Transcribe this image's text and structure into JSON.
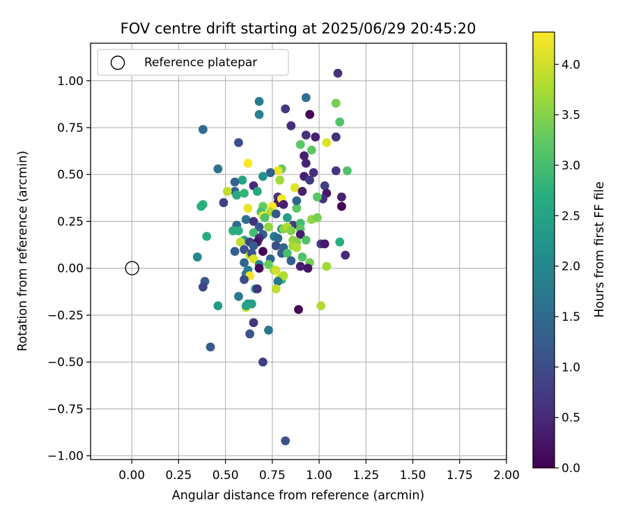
{
  "chart_data": {
    "type": "scatter",
    "title": "FOV centre drift starting at 2025/06/29 20:45:20",
    "xlabel": "Angular distance from reference (arcmin)",
    "ylabel": "Rotation from reference (arcmin)",
    "xlim": [
      -0.22,
      2.0
    ],
    "ylim": [
      -1.02,
      1.2
    ],
    "grid": true,
    "x_ticks": [
      0.0,
      0.25,
      0.5,
      0.75,
      1.0,
      1.25,
      1.5,
      1.75,
      2.0
    ],
    "x_tick_labels": [
      "0.00",
      "0.25",
      "0.50",
      "0.75",
      "1.00",
      "1.25",
      "1.50",
      "1.75",
      "2.00"
    ],
    "y_ticks": [
      -1.0,
      -0.75,
      -0.5,
      -0.25,
      0.0,
      0.25,
      0.5,
      0.75,
      1.0
    ],
    "y_tick_labels": [
      "−1.00",
      "−0.75",
      "−0.50",
      "−0.25",
      "0.00",
      "0.25",
      "0.50",
      "0.75",
      "1.00"
    ],
    "legend": {
      "placement": "upper-left",
      "entries": [
        "Reference platepar"
      ]
    },
    "reference_point": {
      "name": "Reference platepar",
      "x": 0.0,
      "y": 0.0,
      "marker": "open-circle"
    },
    "colorbar": {
      "label": "Hours from first FF file",
      "range": [
        0.0,
        4.32
      ],
      "colormap": "viridis",
      "ticks": [
        0.0,
        0.5,
        1.0,
        1.5,
        2.0,
        2.5,
        3.0,
        3.5,
        4.0
      ],
      "tick_labels": [
        "0.0",
        "0.5",
        "1.0",
        "1.5",
        "2.0",
        "2.5",
        "3.0",
        "3.5",
        "4.0"
      ]
    },
    "points": [
      [
        1.1,
        1.04,
        0.6
      ],
      [
        1.09,
        0.88,
        3.4
      ],
      [
        0.68,
        0.89,
        1.8
      ],
      [
        0.93,
        0.91,
        1.6
      ],
      [
        0.82,
        0.85,
        0.7
      ],
      [
        0.95,
        0.82,
        0.05
      ],
      [
        0.68,
        0.82,
        1.9
      ],
      [
        1.11,
        0.78,
        3.1
      ],
      [
        0.85,
        0.76,
        0.55
      ],
      [
        0.38,
        0.74,
        1.5
      ],
      [
        0.93,
        0.71,
        0.6
      ],
      [
        1.09,
        0.7,
        0.6
      ],
      [
        0.98,
        0.7,
        0.4
      ],
      [
        0.57,
        0.67,
        1.0
      ],
      [
        0.9,
        0.66,
        3.2
      ],
      [
        1.04,
        0.67,
        4.1
      ],
      [
        0.96,
        0.63,
        3.2
      ],
      [
        0.92,
        0.6,
        0.35
      ],
      [
        0.93,
        0.56,
        0.4
      ],
      [
        0.62,
        0.56,
        4.3
      ],
      [
        0.46,
        0.53,
        1.6
      ],
      [
        0.8,
        0.53,
        3.3
      ],
      [
        1.09,
        0.52,
        0.7
      ],
      [
        1.15,
        0.52,
        3.1
      ],
      [
        0.97,
        0.51,
        0.55
      ],
      [
        0.78,
        0.52,
        4.2
      ],
      [
        0.74,
        0.51,
        1.3
      ],
      [
        0.7,
        0.49,
        2.2
      ],
      [
        0.92,
        0.49,
        0.4
      ],
      [
        0.95,
        0.47,
        0.75
      ],
      [
        0.79,
        0.47,
        3.7
      ],
      [
        0.59,
        0.47,
        2.5
      ],
      [
        0.55,
        0.46,
        1.4
      ],
      [
        1.03,
        0.44,
        0.8
      ],
      [
        0.65,
        0.44,
        0.5
      ],
      [
        0.67,
        0.41,
        2.6
      ],
      [
        0.55,
        0.41,
        1.3
      ],
      [
        0.51,
        0.41,
        3.9
      ],
      [
        0.56,
        0.39,
        2.6
      ],
      [
        0.6,
        0.4,
        2.8
      ],
      [
        1.04,
        0.4,
        0.3
      ],
      [
        0.87,
        0.43,
        4.1
      ],
      [
        0.91,
        0.41,
        0.4
      ],
      [
        0.78,
        0.38,
        0.6
      ],
      [
        0.78,
        0.35,
        0.35
      ],
      [
        0.8,
        0.37,
        4.25
      ],
      [
        1.02,
        0.37,
        0.6
      ],
      [
        1.12,
        0.38,
        0.4
      ],
      [
        0.99,
        0.38,
        3.2
      ],
      [
        0.49,
        0.35,
        0.8
      ],
      [
        0.38,
        0.34,
        2.8
      ],
      [
        0.37,
        0.33,
        2.7
      ],
      [
        0.7,
        0.33,
        3.3
      ],
      [
        0.62,
        0.32,
        4.2
      ],
      [
        0.88,
        0.32,
        3.2
      ],
      [
        1.12,
        0.33,
        0.05
      ],
      [
        0.81,
        0.34,
        0.35
      ],
      [
        0.69,
        0.3,
        3.0
      ],
      [
        0.75,
        0.33,
        4.3
      ],
      [
        0.88,
        0.36,
        1.4
      ],
      [
        0.74,
        0.3,
        3.8
      ],
      [
        0.77,
        0.29,
        1.2
      ],
      [
        0.7,
        0.28,
        4.2
      ],
      [
        0.71,
        0.27,
        3.1
      ],
      [
        0.96,
        0.26,
        3.6
      ],
      [
        0.99,
        0.27,
        3.4
      ],
      [
        0.61,
        0.26,
        1.6
      ],
      [
        0.65,
        0.25,
        0.6
      ],
      [
        0.83,
        0.27,
        2.4
      ],
      [
        0.86,
        0.23,
        0.75
      ],
      [
        0.9,
        0.24,
        3.0
      ],
      [
        0.56,
        0.23,
        1.5
      ],
      [
        0.73,
        0.22,
        3.6
      ],
      [
        0.68,
        0.22,
        1.2
      ],
      [
        0.57,
        0.2,
        2.7
      ],
      [
        0.54,
        0.2,
        2.7
      ],
      [
        0.8,
        0.21,
        2.3
      ],
      [
        0.81,
        0.21,
        3.5
      ],
      [
        0.83,
        0.22,
        3.8
      ],
      [
        0.85,
        0.2,
        3.5
      ],
      [
        0.9,
        0.21,
        3.2
      ],
      [
        0.9,
        0.18,
        0.35
      ],
      [
        0.65,
        0.19,
        3.0
      ],
      [
        0.7,
        0.18,
        1.3
      ],
      [
        0.4,
        0.17,
        2.6
      ],
      [
        0.76,
        0.17,
        1.8
      ],
      [
        0.78,
        0.16,
        1.5
      ],
      [
        0.68,
        0.16,
        0.55
      ],
      [
        0.6,
        0.15,
        2.4
      ],
      [
        0.63,
        0.14,
        0.85
      ],
      [
        0.67,
        0.14,
        0.25
      ],
      [
        0.58,
        0.14,
        3.9
      ],
      [
        0.86,
        0.15,
        3.6
      ],
      [
        0.88,
        0.14,
        3.5
      ],
      [
        0.93,
        0.15,
        3.1
      ],
      [
        1.01,
        0.13,
        0.7
      ],
      [
        1.03,
        0.13,
        0.3
      ],
      [
        1.11,
        0.14,
        2.7
      ],
      [
        0.65,
        0.12,
        1.2
      ],
      [
        0.77,
        0.12,
        1.0
      ],
      [
        0.81,
        0.11,
        1.4
      ],
      [
        0.86,
        0.12,
        3.7
      ],
      [
        0.88,
        0.11,
        3.8
      ],
      [
        0.6,
        0.1,
        1.1
      ],
      [
        0.55,
        0.09,
        1.3
      ],
      [
        0.7,
        0.09,
        0.05
      ],
      [
        0.63,
        0.07,
        3.9
      ],
      [
        0.64,
        0.08,
        1.1
      ],
      [
        0.8,
        0.08,
        1.3
      ],
      [
        0.83,
        0.08,
        3.0
      ],
      [
        0.91,
        0.06,
        3.1
      ],
      [
        1.14,
        0.07,
        0.5
      ],
      [
        0.35,
        0.06,
        2.0
      ],
      [
        0.65,
        0.05,
        4.1
      ],
      [
        0.74,
        0.05,
        1.4
      ],
      [
        0.85,
        0.04,
        1.3
      ],
      [
        0.6,
        0.03,
        1.4
      ],
      [
        0.68,
        0.02,
        2.0
      ],
      [
        0.73,
        0.02,
        3.3
      ],
      [
        0.95,
        0.03,
        3.4
      ],
      [
        0.9,
        0.01,
        0.35
      ],
      [
        0.94,
        0.0,
        0.25
      ],
      [
        1.04,
        0.01,
        3.7
      ],
      [
        0.62,
        -0.01,
        1.8
      ],
      [
        0.68,
        0.0,
        0.1
      ],
      [
        0.76,
        -0.01,
        3.6
      ],
      [
        0.77,
        -0.01,
        4.0
      ],
      [
        0.61,
        -0.03,
        1.7
      ],
      [
        0.63,
        -0.04,
        4.25
      ],
      [
        0.79,
        -0.05,
        4.1
      ],
      [
        0.8,
        -0.06,
        2.9
      ],
      [
        0.81,
        -0.04,
        3.8
      ],
      [
        0.78,
        -0.07,
        1.7
      ],
      [
        0.6,
        -0.06,
        1.0
      ],
      [
        0.39,
        -0.07,
        1.2
      ],
      [
        0.38,
        -0.1,
        0.9
      ],
      [
        0.66,
        -0.11,
        2.3
      ],
      [
        0.67,
        -0.11,
        0.6
      ],
      [
        0.77,
        -0.11,
        3.9
      ],
      [
        0.57,
        -0.15,
        1.8
      ],
      [
        0.62,
        -0.19,
        2.2
      ],
      [
        0.64,
        -0.19,
        2.4
      ],
      [
        0.46,
        -0.2,
        2.3
      ],
      [
        0.61,
        -0.21,
        4.1
      ],
      [
        0.61,
        -0.2,
        2.5
      ],
      [
        1.01,
        -0.2,
        3.8
      ],
      [
        0.89,
        -0.22,
        0.1
      ],
      [
        0.65,
        -0.29,
        0.7
      ],
      [
        0.73,
        -0.33,
        1.7
      ],
      [
        0.63,
        -0.35,
        1.1
      ],
      [
        0.42,
        -0.42,
        1.2
      ],
      [
        0.7,
        -0.5,
        0.8
      ],
      [
        0.82,
        -0.92,
        1.1
      ]
    ]
  }
}
